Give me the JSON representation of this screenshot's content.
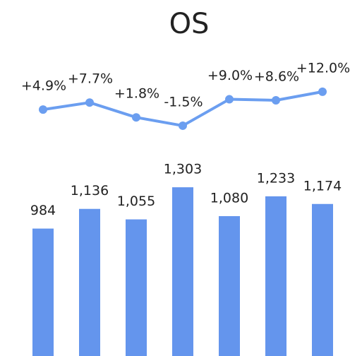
{
  "chart_data": {
    "type": "bar_line",
    "title": "OS",
    "categories": [
      null,
      null,
      null,
      null,
      null,
      null,
      null
    ],
    "ylim": [
      0,
      1500
    ],
    "y2lim": [
      -5,
      15
    ],
    "series": [
      {
        "type": "bar",
        "color": "#6495ed",
        "values": [
          984,
          1136,
          1055,
          1303,
          1080,
          1233,
          1174
        ],
        "value_labels": [
          "984",
          "1,136",
          "1,055",
          "1,303",
          "1,080",
          "1,233",
          "1,174"
        ]
      },
      {
        "type": "line",
        "axis": "y2",
        "color": "#6b9ef0",
        "values": [
          4.9,
          7.7,
          1.8,
          -1.5,
          9.0,
          8.6,
          12.0
        ],
        "value_labels": [
          "+4.9%",
          "+7.7%",
          "+1.8%",
          "-1.5%",
          "+9.0%",
          "+8.6%",
          "+12.0%"
        ]
      }
    ]
  }
}
